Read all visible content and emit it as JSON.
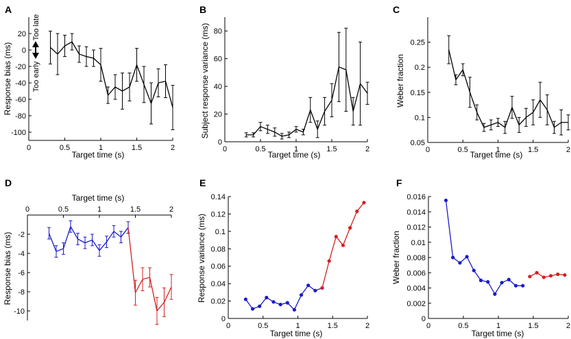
{
  "chart_data": [
    {
      "panel": "A",
      "type": "line",
      "xlabel": "Target time (s)",
      "ylabel": "Response bias (ms)",
      "xlim": [
        0,
        2
      ],
      "ylim": [
        -110,
        40
      ],
      "xticks": [
        0,
        0.5,
        1,
        1.5,
        2
      ],
      "xtick_labels": [
        "0",
        "0.5",
        "1",
        "1.5",
        "2"
      ],
      "yticks": [
        20,
        0,
        -20,
        -40,
        -60,
        -80,
        -100
      ],
      "ytick_labels": [
        "20",
        "0",
        "-20",
        "-40",
        "-60",
        "-80",
        "-100"
      ],
      "annotations": {
        "too_late": "Too late",
        "too_early": "Too early"
      },
      "series": [
        {
          "name": "bias",
          "color": "#000000",
          "markers": false,
          "x": [
            0.3,
            0.4,
            0.5,
            0.6,
            0.7,
            0.8,
            0.9,
            1.0,
            1.1,
            1.2,
            1.3,
            1.4,
            1.5,
            1.6,
            1.7,
            1.8,
            1.9,
            2.0
          ],
          "y": [
            3,
            -5,
            5,
            10,
            -5,
            -8,
            -10,
            -18,
            -55,
            -45,
            -50,
            -45,
            -18,
            -42,
            -65,
            -40,
            -38,
            -70
          ],
          "err": [
            20,
            25,
            13,
            10,
            10,
            12,
            10,
            20,
            10,
            15,
            22,
            17,
            20,
            22,
            25,
            17,
            20,
            27
          ]
        }
      ]
    },
    {
      "panel": "B",
      "type": "line",
      "xlabel": "Target time (s)",
      "ylabel": "Subject response variance (ms)",
      "xlim": [
        0,
        2
      ],
      "ylim": [
        0,
        90
      ],
      "xticks": [
        0,
        0.5,
        1,
        1.5,
        2
      ],
      "xtick_labels": [
        "0",
        "0.5",
        "1",
        "1.5",
        "2"
      ],
      "yticks": [
        0,
        20,
        40,
        60,
        80
      ],
      "ytick_labels": [
        "0",
        "20",
        "40",
        "60",
        "80"
      ],
      "series": [
        {
          "name": "variance",
          "color": "#000000",
          "markers": false,
          "x": [
            0.3,
            0.4,
            0.5,
            0.6,
            0.7,
            0.8,
            0.9,
            1.0,
            1.1,
            1.2,
            1.3,
            1.4,
            1.5,
            1.6,
            1.7,
            1.8,
            1.9,
            2.0
          ],
          "y": [
            5,
            5,
            11,
            9,
            7,
            4,
            5,
            9,
            7,
            23,
            9,
            22,
            30,
            54,
            52,
            22,
            42,
            35
          ],
          "err": [
            1.5,
            1.5,
            3,
            3,
            3,
            2,
            2,
            2,
            2,
            9,
            6,
            10,
            12,
            25,
            30,
            10,
            30,
            8
          ]
        }
      ]
    },
    {
      "panel": "C",
      "type": "line",
      "xlabel": "Target time (s)",
      "ylabel": "Weber fraction",
      "xlim": [
        0,
        2
      ],
      "ylim": [
        0.05,
        0.3
      ],
      "xticks": [
        0,
        0.5,
        1,
        1.5,
        2
      ],
      "xtick_labels": [
        "0",
        "0.5",
        "1",
        "1.5",
        "2"
      ],
      "yticks": [
        0.05,
        0.1,
        0.15,
        0.2,
        0.25
      ],
      "ytick_labels": [
        "0.05",
        "0.1",
        "0.15",
        "0.2",
        "0.25"
      ],
      "series": [
        {
          "name": "weber",
          "color": "#000000",
          "markers": false,
          "x": [
            0.3,
            0.4,
            0.5,
            0.6,
            0.7,
            0.8,
            0.9,
            1.0,
            1.1,
            1.2,
            1.3,
            1.4,
            1.5,
            1.6,
            1.7,
            1.8,
            1.9,
            2.0
          ],
          "y": [
            0.235,
            0.175,
            0.195,
            0.15,
            0.11,
            0.08,
            0.085,
            0.09,
            0.08,
            0.12,
            0.085,
            0.1,
            0.11,
            0.135,
            0.115,
            0.08,
            0.09,
            0.09
          ],
          "err": [
            0.028,
            0.01,
            0.012,
            0.03,
            0.015,
            0.008,
            0.01,
            0.008,
            0.012,
            0.022,
            0.015,
            0.018,
            0.025,
            0.035,
            0.03,
            0.012,
            0.025,
            0.015
          ]
        }
      ]
    },
    {
      "panel": "D",
      "type": "line",
      "xlabel": "Target time (s)",
      "ylabel": "Response bias (ms)",
      "xaxis_position": "top",
      "xlim": [
        0,
        2
      ],
      "ylim": [
        -11,
        0
      ],
      "xticks": [
        0,
        0.5,
        1,
        1.5,
        2
      ],
      "xtick_labels": [
        "0",
        "0.5",
        "1",
        "1.5",
        "2"
      ],
      "yticks": [
        -2,
        -4,
        -6,
        -8,
        -10
      ],
      "ytick_labels": [
        "-2",
        "-4",
        "-6",
        "-8",
        "-10"
      ],
      "series": [
        {
          "name": "early",
          "color": "#1a1acc",
          "markers": false,
          "x": [
            0.3,
            0.4,
            0.5,
            0.6,
            0.7,
            0.8,
            0.9,
            1.0,
            1.1,
            1.2,
            1.3,
            1.4
          ],
          "y": [
            -1.9,
            -3.8,
            -3.5,
            -1.2,
            -2.5,
            -2.9,
            -2.6,
            -3.7,
            -2.8,
            -1.7,
            -2.3,
            -1.3
          ],
          "err": [
            0.6,
            0.6,
            0.6,
            0.6,
            0.6,
            0.6,
            0.6,
            0.6,
            0.6,
            0.6,
            0.6,
            0.6
          ]
        },
        {
          "name": "late",
          "color": "#d42020",
          "markers": false,
          "x": [
            1.4,
            1.5,
            1.6,
            1.7,
            1.8,
            1.9,
            2.0
          ],
          "y": [
            -1.3,
            -8.1,
            -6.7,
            -6.5,
            -10.0,
            -9.1,
            -7.5
          ],
          "err": [
            0,
            1.3,
            1.2,
            1.0,
            1.4,
            1.5,
            1.3
          ]
        }
      ]
    },
    {
      "panel": "E",
      "type": "line",
      "xlabel": "Target time (s)",
      "ylabel": "Response variance (ms)",
      "xlim": [
        0,
        2
      ],
      "ylim": [
        0,
        0.14
      ],
      "xticks": [
        0,
        0.5,
        1,
        1.5,
        2
      ],
      "xtick_labels": [
        "0",
        "0.5",
        "1",
        "1.5",
        "2"
      ],
      "yticks": [
        0,
        0.02,
        0.04,
        0.06,
        0.08,
        0.1,
        0.12,
        0.14
      ],
      "ytick_labels": [
        "0",
        "0.02",
        "0.04",
        "0.06",
        "0.08",
        "0.1",
        "0.12",
        "0.14"
      ],
      "series": [
        {
          "name": "early",
          "color": "#1a1acc",
          "markers": true,
          "x": [
            0.25,
            0.35,
            0.45,
            0.55,
            0.65,
            0.75,
            0.85,
            0.95,
            1.05,
            1.15,
            1.25,
            1.35
          ],
          "y": [
            0.022,
            0.011,
            0.014,
            0.024,
            0.019,
            0.016,
            0.018,
            0.01,
            0.027,
            0.038,
            0.032,
            0.035
          ]
        },
        {
          "name": "late",
          "color": "#d42020",
          "markers": true,
          "x": [
            1.35,
            1.45,
            1.55,
            1.65,
            1.75,
            1.85,
            1.95
          ],
          "y": [
            0.035,
            0.066,
            0.094,
            0.084,
            0.104,
            0.123,
            0.133
          ]
        }
      ]
    },
    {
      "panel": "F",
      "type": "line",
      "xlabel": "Target time (s)",
      "ylabel": "Weber fraction",
      "xlim": [
        0,
        2
      ],
      "ylim": [
        0,
        0.016
      ],
      "xticks": [
        0,
        0.5,
        1,
        1.5,
        2
      ],
      "xtick_labels": [
        "0",
        "0.5",
        "1",
        "1.5",
        "2"
      ],
      "yticks": [
        0,
        0.002,
        0.004,
        0.006,
        0.008,
        0.01,
        0.012,
        0.014,
        0.016
      ],
      "ytick_labels": [
        "0",
        "0.002",
        "0.004",
        "0.006",
        "0.008",
        "0.01",
        "0.012",
        "0.014",
        "0.016"
      ],
      "series": [
        {
          "name": "early",
          "color": "#1a1acc",
          "markers": true,
          "x": [
            0.25,
            0.35,
            0.45,
            0.55,
            0.65,
            0.75,
            0.85,
            0.95,
            1.05,
            1.15,
            1.25,
            1.35
          ],
          "y": [
            0.0155,
            0.008,
            0.0073,
            0.0081,
            0.0063,
            0.005,
            0.0048,
            0.0032,
            0.0047,
            0.0051,
            0.0043,
            0.0043
          ]
        },
        {
          "name": "late",
          "color": "#d42020",
          "markers": true,
          "x": [
            1.45,
            1.55,
            1.65,
            1.75,
            1.85,
            1.95
          ],
          "y": [
            0.0055,
            0.006,
            0.0054,
            0.0056,
            0.0058,
            0.0057
          ]
        }
      ]
    }
  ]
}
